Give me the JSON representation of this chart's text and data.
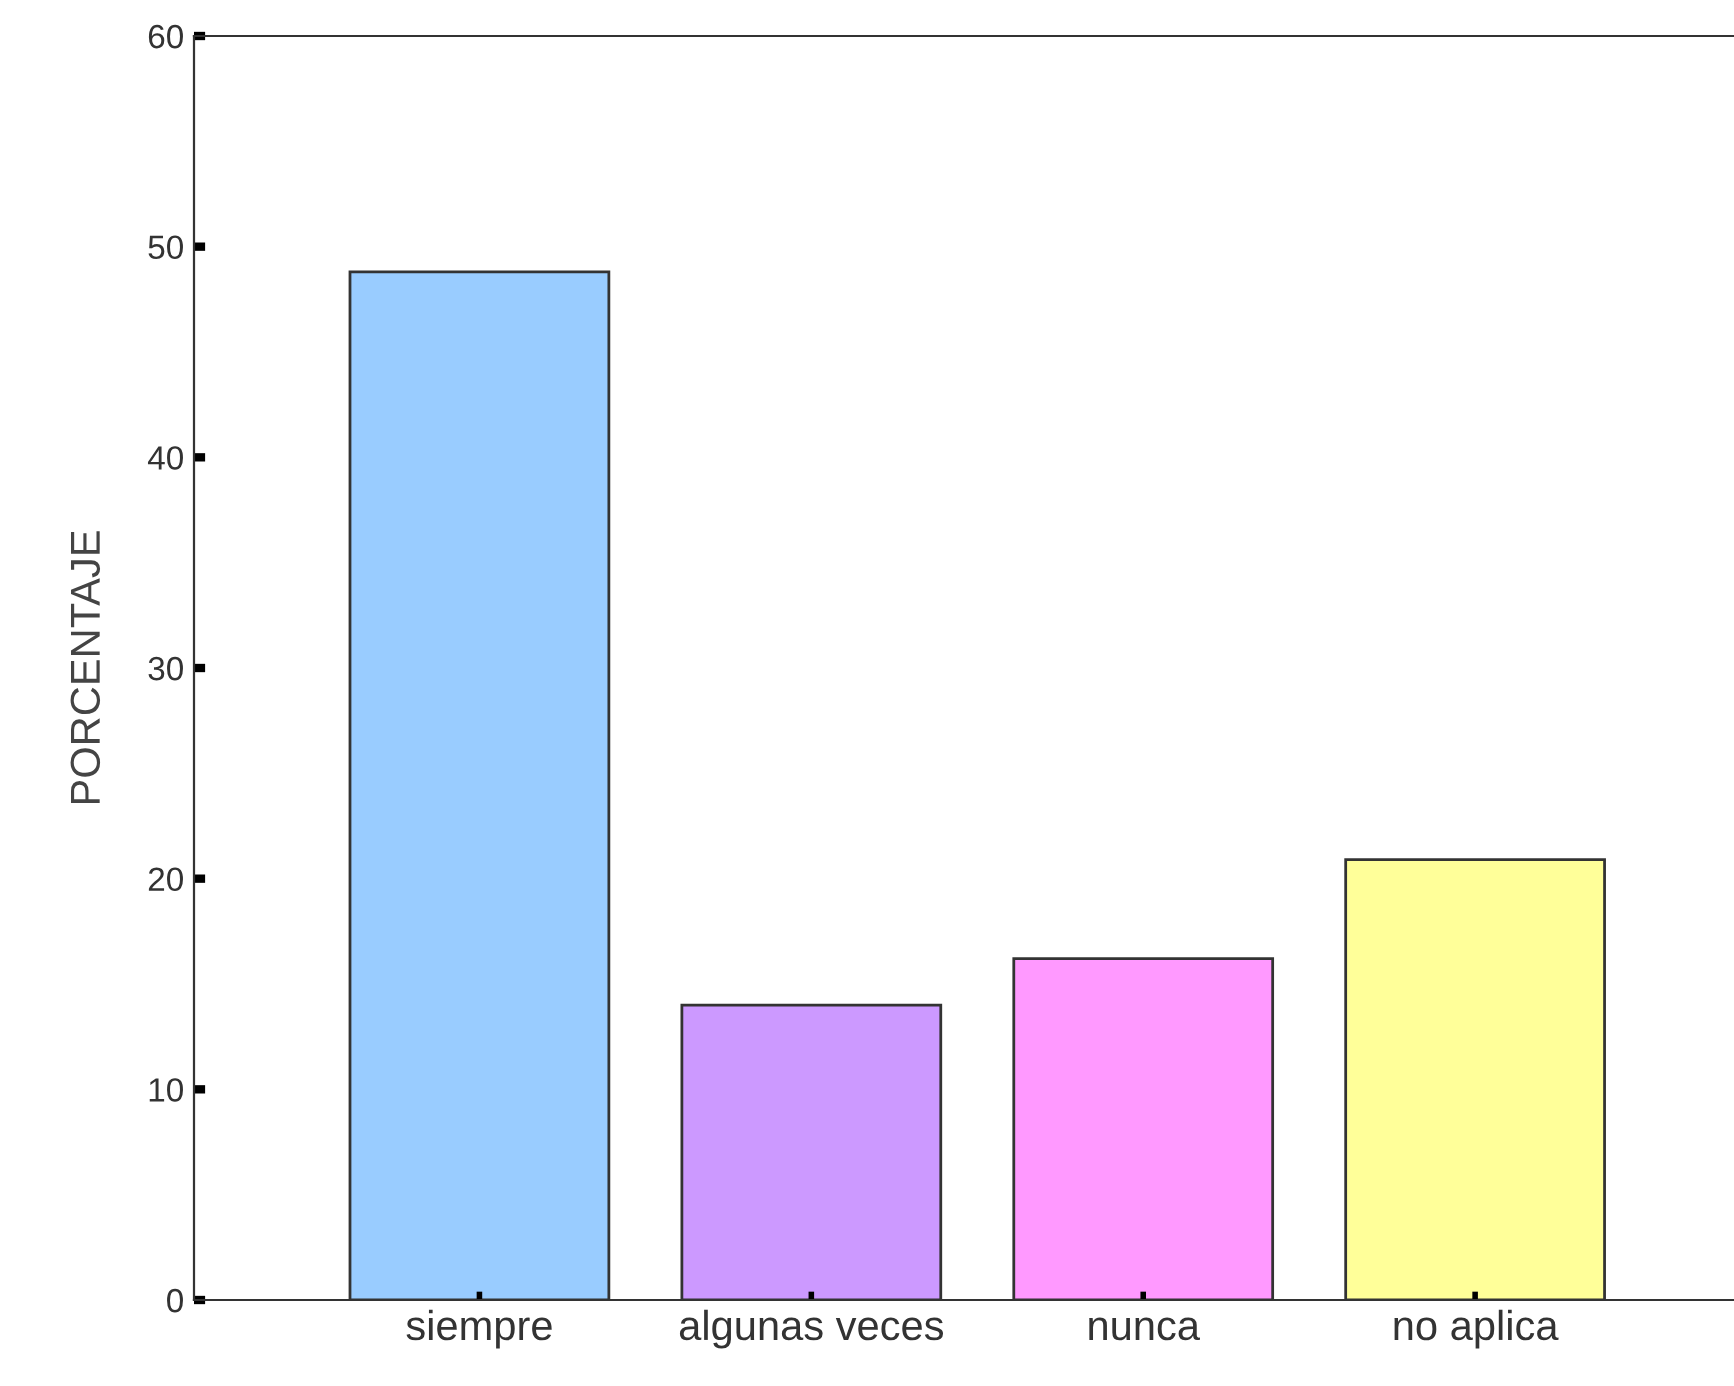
{
  "chart_data": {
    "type": "bar",
    "ylabel": "PORCENTAJE",
    "categories": [
      "siempre",
      "algunas veces",
      "nunca",
      "no aplica"
    ],
    "values": [
      48.8,
      14.0,
      16.2,
      20.9
    ],
    "colors": [
      "#99ccff",
      "#cc99ff",
      "#ff99ff",
      "#ffff99"
    ],
    "ylim": [
      0,
      60
    ],
    "yticks": [
      0,
      10,
      20,
      30,
      40,
      50,
      60
    ],
    "grid": false,
    "legend": false
  }
}
